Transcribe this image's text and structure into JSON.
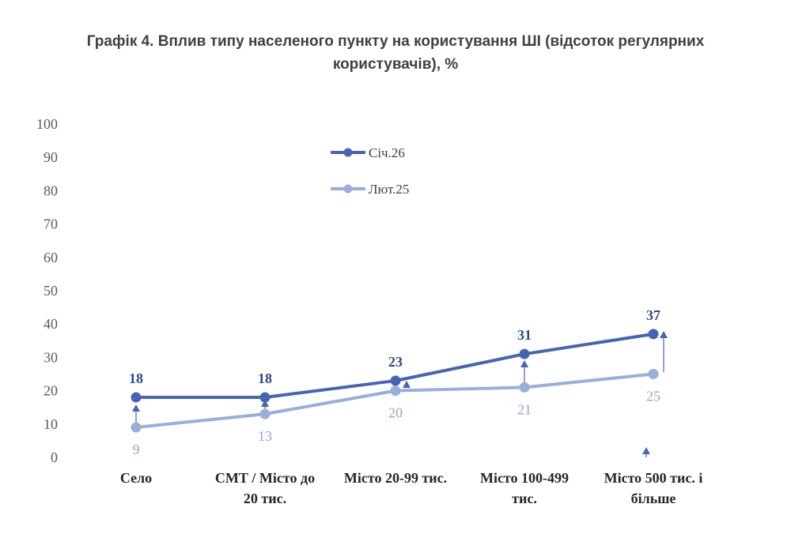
{
  "chart_data": {
    "type": "line",
    "title_lines": [
      "Графік 4. Вплив типу населеного пункту на користування ШІ (відсоток регулярних",
      "користувачів), %"
    ],
    "categories": [
      [
        "Село"
      ],
      [
        "СМТ / Місто до",
        "20 тис."
      ],
      [
        "Місто 20-99 тис."
      ],
      [
        "Місто 100-499",
        "тис."
      ],
      [
        "Місто 500 тис. і",
        "більше"
      ]
    ],
    "series": [
      {
        "name": "Січ.26",
        "values": [
          18,
          18,
          23,
          31,
          37
        ],
        "labels": [
          "18",
          "18",
          "23",
          "31",
          "37"
        ],
        "color": "#4664b4",
        "label_color": "#2e4a8c",
        "bold": true
      },
      {
        "name": "Лют.25",
        "values": [
          9,
          13,
          20,
          21,
          25
        ],
        "labels": [
          "9",
          "13",
          "20",
          "21",
          "25"
        ],
        "color": "#98aedb",
        "label_color": "#8fa6d4",
        "bold": false
      }
    ],
    "ylim": [
      0,
      100
    ],
    "yticks": [
      "0",
      "10",
      "20",
      "30",
      "40",
      "50",
      "60",
      "70",
      "80",
      "90",
      "100"
    ],
    "legend_position": "top-center",
    "grid": false
  }
}
